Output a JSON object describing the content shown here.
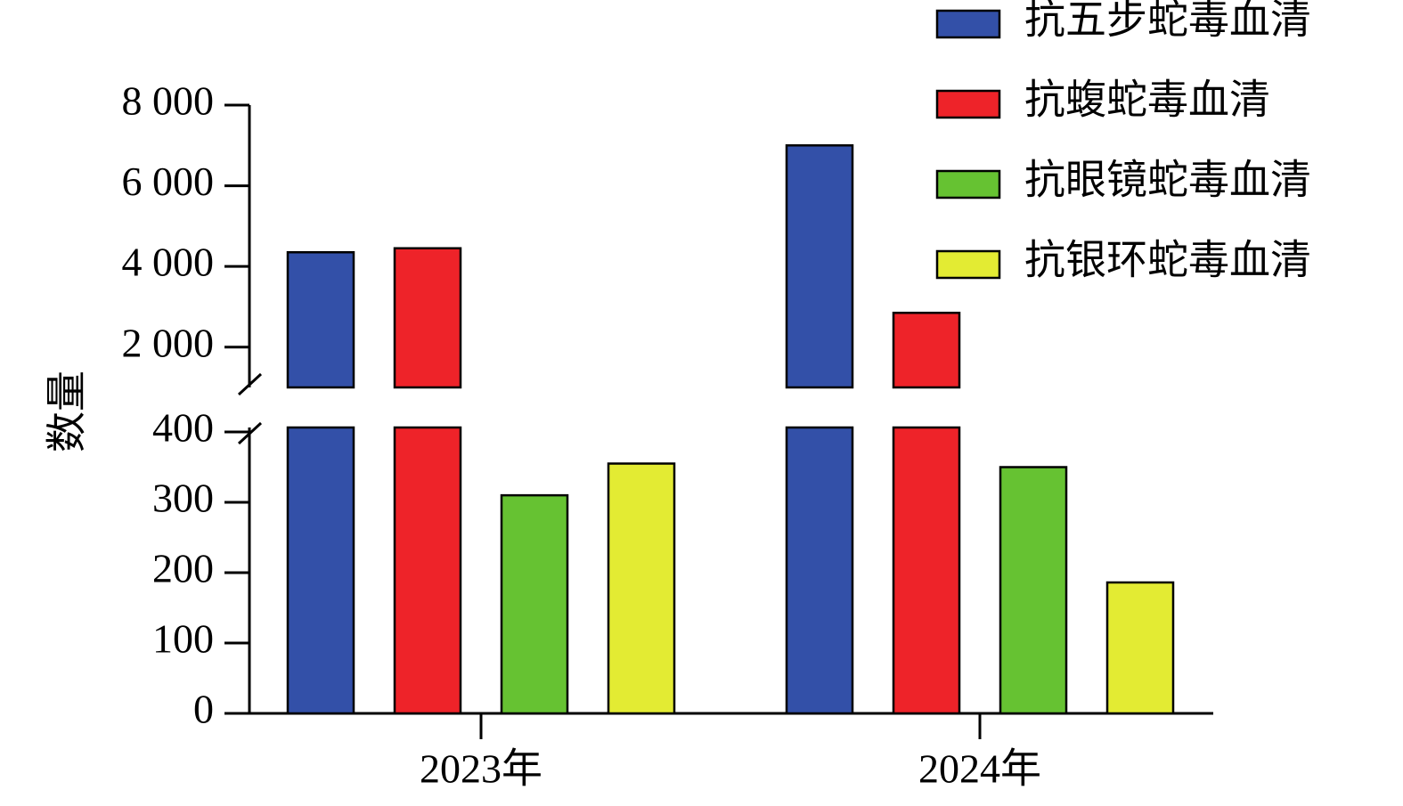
{
  "chart_data": {
    "type": "bar",
    "y_label": "数量",
    "categories": [
      "2023年",
      "2024年"
    ],
    "series": [
      {
        "name": "抗五步蛇毒血清",
        "color": "#3350a8",
        "values": [
          4350,
          7000
        ]
      },
      {
        "name": "抗蝮蛇毒血清",
        "color": "#ee2329",
        "values": [
          4450,
          2850
        ]
      },
      {
        "name": "抗眼镜蛇毒血清",
        "color": "#66c232",
        "values": [
          310,
          350
        ]
      },
      {
        "name": "抗银环蛇毒血清",
        "color": "#e3eb33",
        "values": [
          355,
          186
        ]
      }
    ],
    "ylim": [
      0,
      8000
    ],
    "axis_break": [
      400,
      1000
    ],
    "yticks": [
      0,
      100,
      200,
      300,
      400,
      {
        "value": 2000,
        "label": "2 000"
      },
      {
        "value": 4000,
        "label": "4 000"
      },
      {
        "value": 6000,
        "label": "6 000"
      },
      {
        "value": 8000,
        "label": "8 000"
      }
    ],
    "legend": "top-right"
  }
}
